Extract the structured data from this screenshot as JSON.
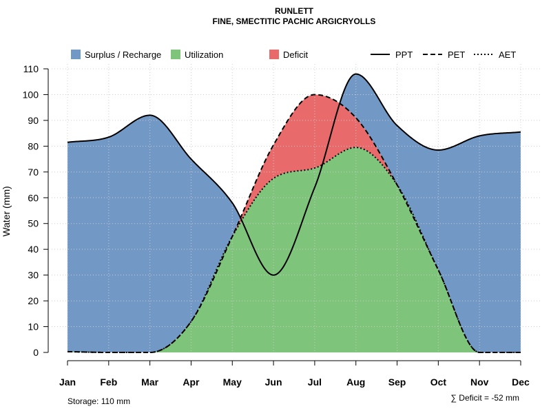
{
  "chart_data": {
    "type": "area",
    "title": "RUNLETT",
    "subtitle": "FINE, SMECTITIC PACHIC ARGICRYOLLS",
    "ylabel": "Water (mm)",
    "xlabel": "",
    "ylim": [
      0,
      110
    ],
    "yticks": [
      0,
      10,
      20,
      30,
      40,
      50,
      60,
      70,
      80,
      90,
      100,
      110
    ],
    "categories": [
      "Jan",
      "Feb",
      "Mar",
      "Apr",
      "May",
      "Jun",
      "Jul",
      "Aug",
      "Sep",
      "Oct",
      "Nov",
      "Dec"
    ],
    "series": [
      {
        "name": "PPT",
        "style": "solid",
        "values": [
          81.5,
          83.5,
          92,
          75,
          58,
          30,
          64,
          108,
          88,
          78.5,
          84,
          85.5
        ]
      },
      {
        "name": "PET",
        "style": "dashed",
        "values": [
          0.3,
          0,
          0,
          12,
          45,
          80.5,
          100,
          91,
          65,
          32,
          0,
          0
        ]
      },
      {
        "name": "AET",
        "style": "dotted",
        "values": [
          0.3,
          0,
          0,
          12,
          45,
          67.5,
          71.5,
          79.5,
          65,
          32,
          0,
          0
        ]
      }
    ],
    "legend": {
      "areas": [
        {
          "label": "Surplus / Recharge",
          "color": "#7299c6"
        },
        {
          "label": "Utilization",
          "color": "#7fc47b"
        },
        {
          "label": "Deficit",
          "color": "#e86a6a"
        }
      ],
      "lines": [
        {
          "label": "PPT",
          "style": "solid"
        },
        {
          "label": "PET",
          "style": "dashed"
        },
        {
          "label": "AET",
          "style": "dotted"
        }
      ],
      "position": "top"
    },
    "grid": true,
    "storage_note": "Storage: 110 mm",
    "deficit_note": "∑ Deficit = -52 mm"
  }
}
